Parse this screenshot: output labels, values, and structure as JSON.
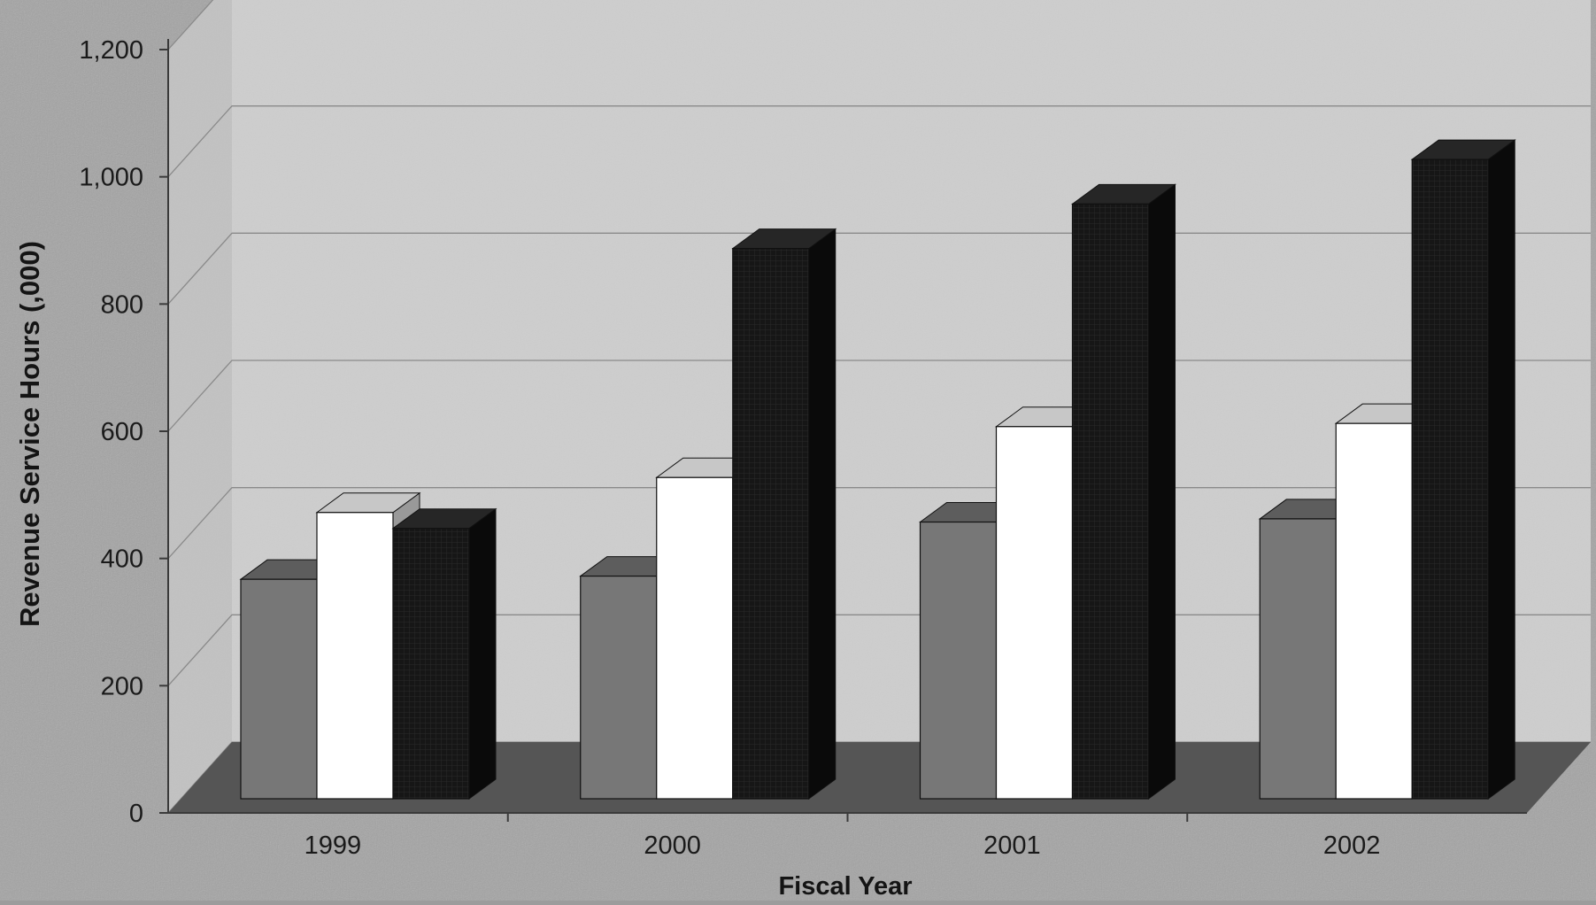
{
  "chart_data": {
    "type": "bar",
    "title": "",
    "xlabel": "Fiscal Year",
    "ylabel": "Revenue Service Hours (,000)",
    "categories": [
      "1999",
      "2000",
      "2001",
      "2002"
    ],
    "ylim": [
      0,
      1200
    ],
    "yticks": [
      "0",
      "200",
      "400",
      "600",
      "800",
      "1,000",
      "1,200"
    ],
    "grid": true,
    "legend": "none",
    "series": [
      {
        "values": [
          345,
          350,
          435,
          440
        ],
        "color": "#777777"
      },
      {
        "values": [
          450,
          505,
          585,
          590
        ],
        "color": "#ffffff"
      },
      {
        "values": [
          425,
          865,
          935,
          1005
        ],
        "color": "#141414"
      }
    ]
  }
}
